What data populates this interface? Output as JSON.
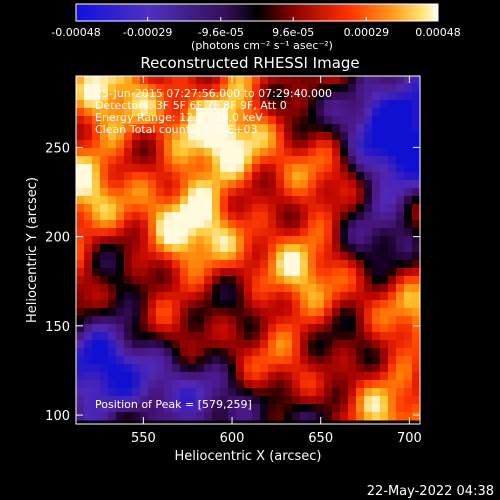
{
  "chart_data": {
    "type": "heatmap",
    "title": "Reconstructed RHESSI Image",
    "xlabel": "Heliocentric X (arcsec)",
    "ylabel": "Heliocentric Y (arcsec)",
    "xlim": [
      512,
      706
    ],
    "ylim": [
      95,
      290
    ],
    "x_ticks": [
      550,
      600,
      650,
      700
    ],
    "y_ticks": [
      100,
      150,
      200,
      250
    ],
    "colorbar": {
      "range": [
        -0.00048,
        0.00048
      ],
      "ticks": [
        -0.00048,
        -0.00029,
        -9.6e-05,
        9.6e-05,
        0.00029,
        0.00048
      ],
      "tick_labels": [
        "-0.00048",
        "-0.00029",
        "-9.6e-05",
        "9.6e-05",
        "0.00029",
        "0.00048"
      ],
      "unit_label": "(photons cm⁻² s⁻¹ asec⁻²)"
    },
    "annotations": [
      "25-Jun-2015 07:27:56.000 to 07:29:40.000",
      "Detectors: 3F 5F 6F 7F 8F 9F, Att 0",
      "Energy Range: 12.0 - 25.0 keV",
      "Clean     Total counts: 1.97E+03"
    ],
    "peak_label": "Position of Peak = [579,259]",
    "peak_position": [
      579,
      259
    ],
    "colors": {
      "negative_low": "#1010d0",
      "negative_mid": "#6030b0",
      "zero": "#000000",
      "positive_low": "#b00000",
      "positive_mid": "#ff4000",
      "positive_high": "#ffd040",
      "positive_max": "#ffffff"
    }
  },
  "timestamp": "22-May-2022 04:38"
}
